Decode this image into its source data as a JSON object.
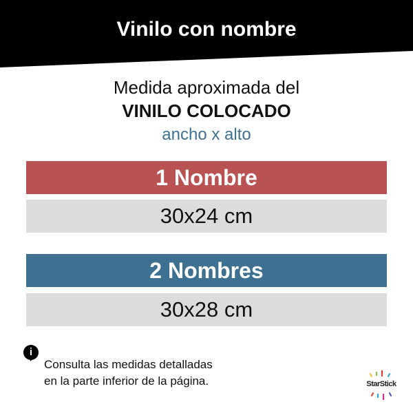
{
  "header": {
    "title": "Vinilo con nombre"
  },
  "subtitle": {
    "line1": "Medida aproximada del",
    "line2": "VINILO COLOCADO",
    "line3": "ancho x alto"
  },
  "options": [
    {
      "label": "1 Nombre",
      "size": "30x24 cm",
      "color": "#b95252"
    },
    {
      "label": "2 Nombres",
      "size": "30x28 cm",
      "color": "#3e7092"
    }
  ],
  "note": {
    "icon": "info-icon",
    "line1": "Consulta las medidas detalladas",
    "line2": "en la parte inferior de la página."
  },
  "logo": {
    "text": "STARSTICK"
  }
}
